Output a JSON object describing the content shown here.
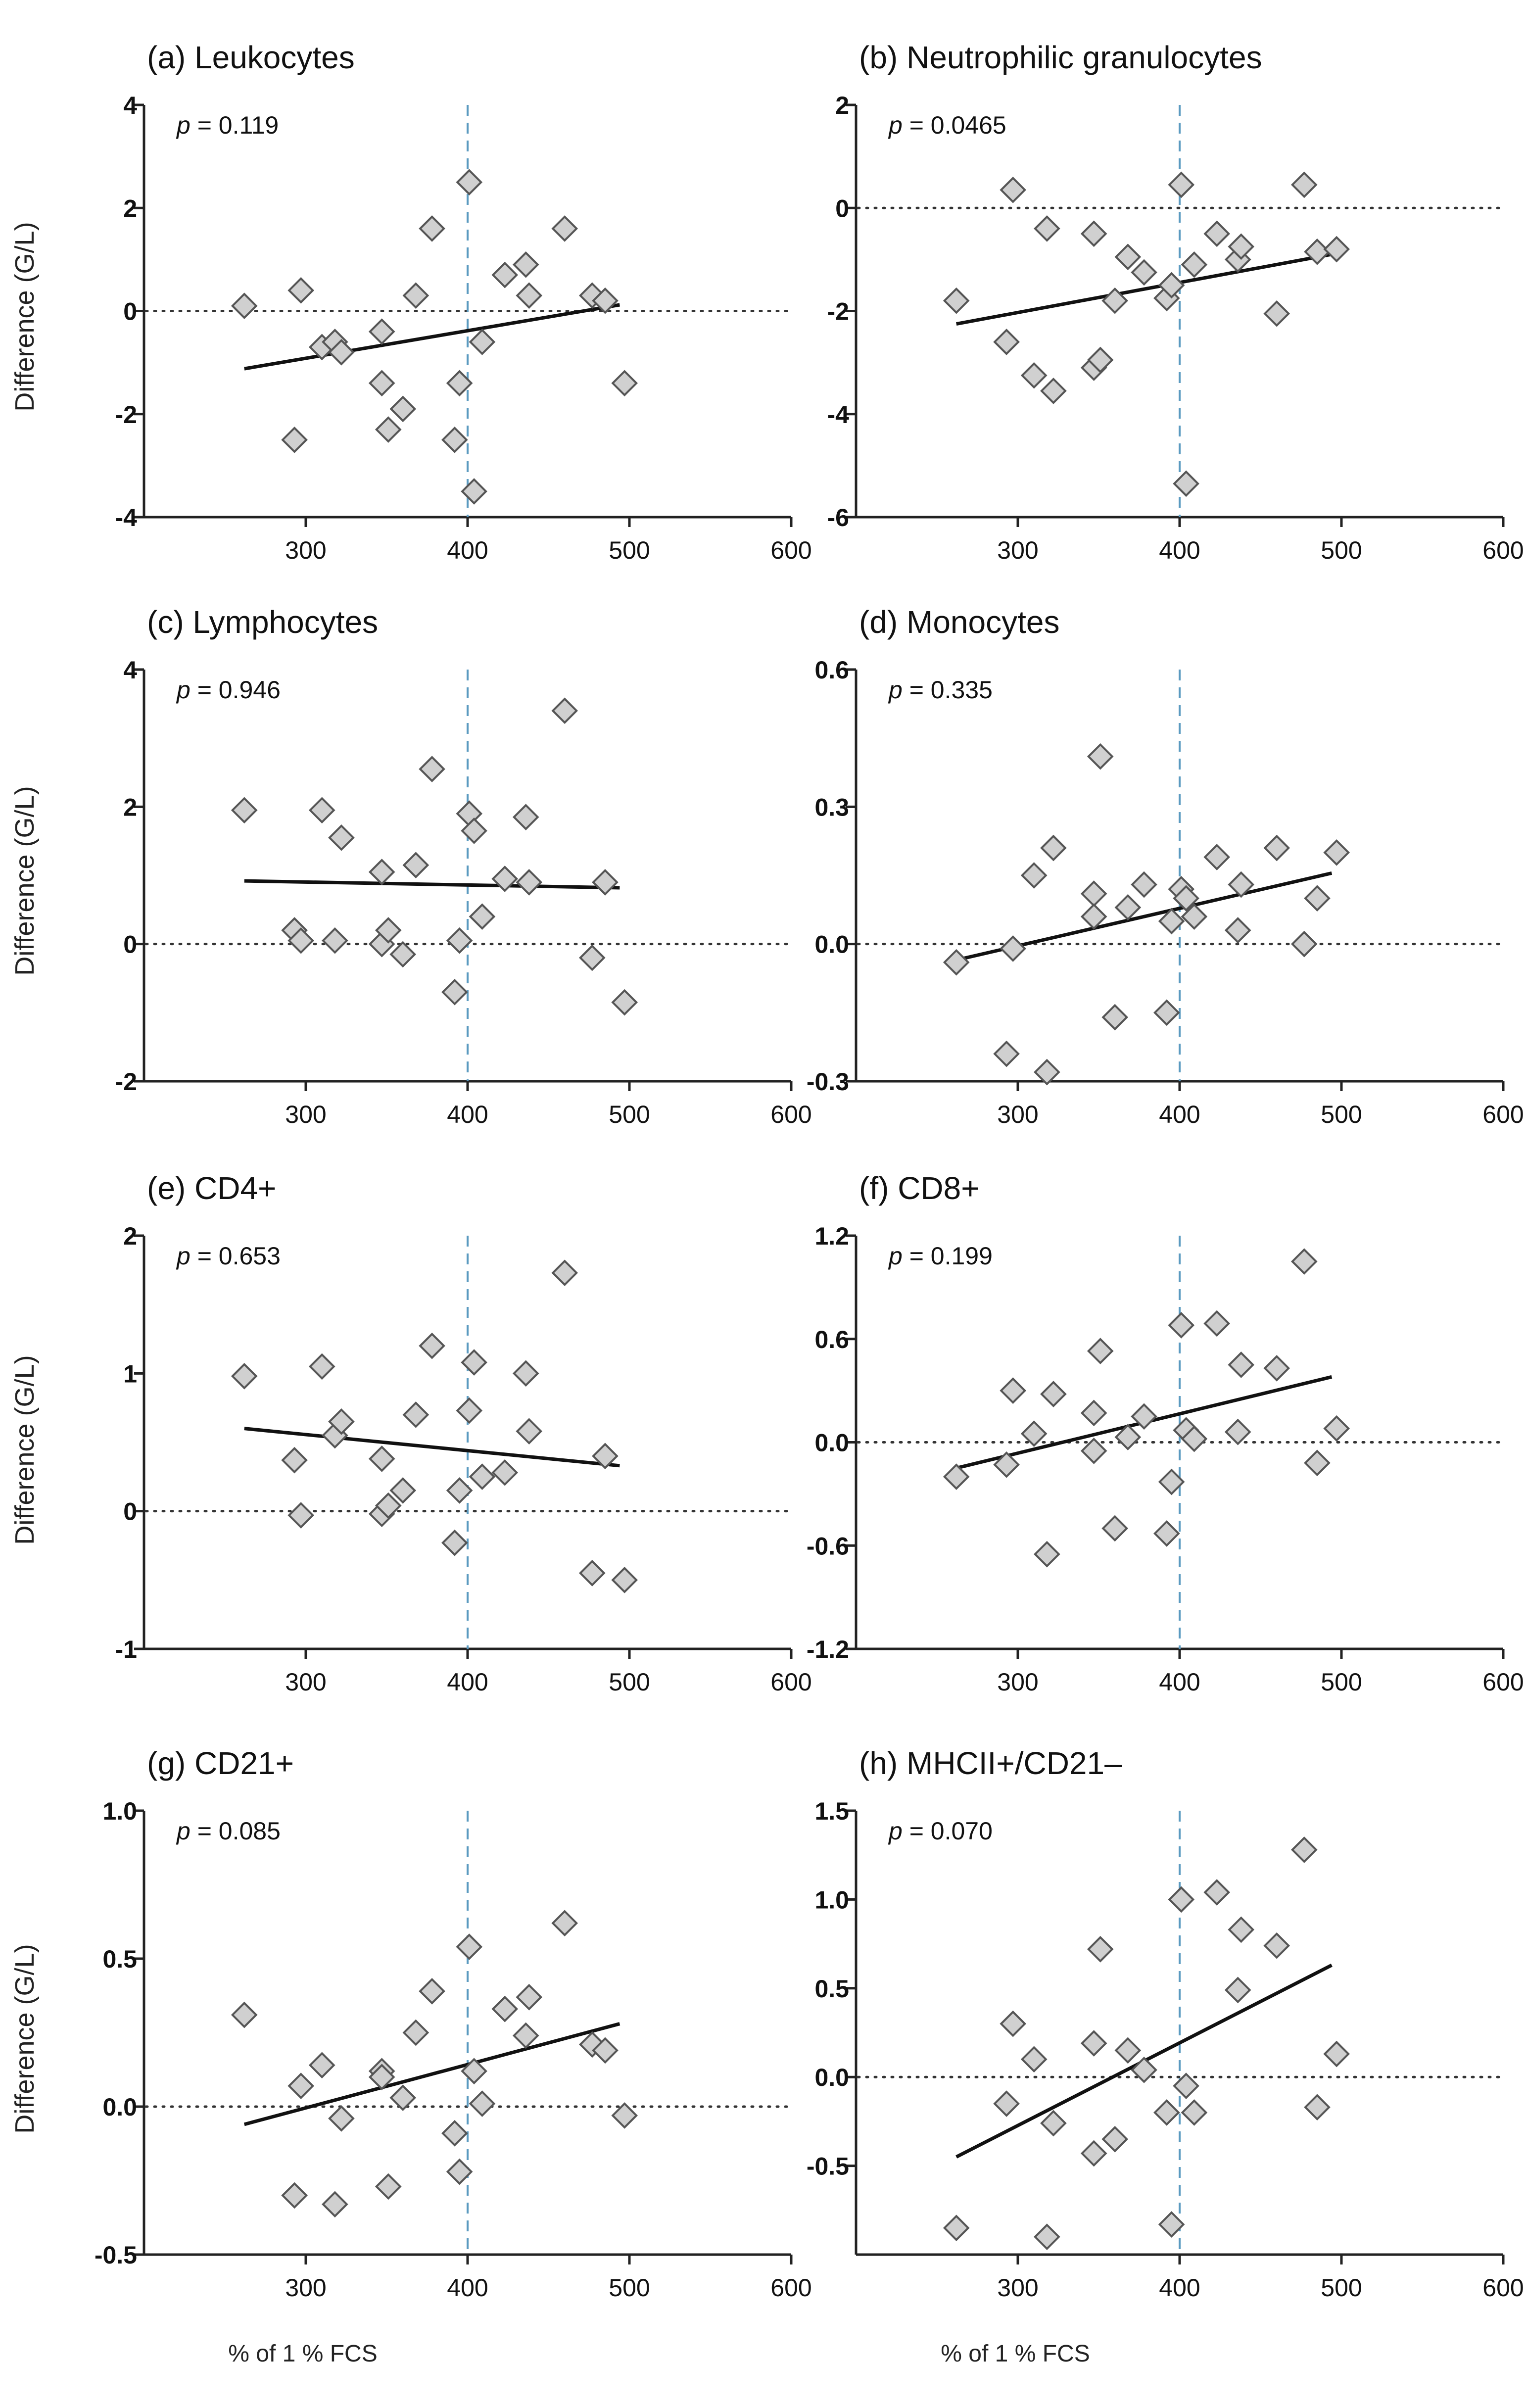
{
  "figure": {
    "x_axis_label": "% of 1 % FCS",
    "y_axis_label": "Difference (G/L)",
    "colors": {
      "marker_fill": "#d0d0d0",
      "marker_stroke": "#555555",
      "vline": "#5a9ac0",
      "regression": "#111111"
    }
  },
  "chart_data": [
    {
      "type": "scatter",
      "panel": "(a)",
      "title": "(a) Leukocytes",
      "p_label": "p",
      "p_value": " = 0.119",
      "xlim": [
        200,
        600
      ],
      "ylim": [
        -4,
        4
      ],
      "xticks": [
        "300",
        "400",
        "500",
        "600"
      ],
      "xtick_values": [
        300,
        400,
        500,
        600
      ],
      "yticks": [
        "-4",
        "-2",
        "0",
        "2",
        "4"
      ],
      "ytick_values": [
        -4,
        -2,
        0,
        2,
        4
      ],
      "reference_x": 400,
      "zero_line": 0,
      "regression": [
        [
          262,
          -1.12
        ],
        [
          494,
          0.12
        ]
      ],
      "points": [
        [
          262,
          0.1
        ],
        [
          293,
          -2.5
        ],
        [
          297,
          0.4
        ],
        [
          310,
          -0.7
        ],
        [
          318,
          -0.6
        ],
        [
          322,
          -0.8
        ],
        [
          347,
          -0.4
        ],
        [
          347,
          -1.4
        ],
        [
          351,
          -2.3
        ],
        [
          360,
          -1.9
        ],
        [
          368,
          0.3
        ],
        [
          378,
          1.6
        ],
        [
          392,
          -2.5
        ],
        [
          395,
          -1.4
        ],
        [
          401,
          2.5
        ],
        [
          404,
          -3.5
        ],
        [
          409,
          -0.6
        ],
        [
          423,
          0.7
        ],
        [
          436,
          0.9
        ],
        [
          438,
          0.3
        ],
        [
          460,
          1.6
        ],
        [
          477,
          0.3
        ],
        [
          485,
          0.2
        ],
        [
          497,
          -1.4
        ]
      ]
    },
    {
      "type": "scatter",
      "panel": "(b)",
      "title": "(b) Neutrophilic granulocytes",
      "p_label": "p",
      "p_value": " = 0.0465",
      "xlim": [
        200,
        600
      ],
      "ylim": [
        -6,
        2
      ],
      "xticks": [
        "300",
        "400",
        "500",
        "600"
      ],
      "xtick_values": [
        300,
        400,
        500,
        600
      ],
      "yticks": [
        "-6",
        "-4",
        "-2",
        "0",
        "2"
      ],
      "ytick_values": [
        -6,
        -4,
        -2,
        0,
        2
      ],
      "reference_x": 400,
      "zero_line": 0,
      "regression": [
        [
          262,
          -2.25
        ],
        [
          494,
          -0.9
        ]
      ],
      "points": [
        [
          262,
          -1.8
        ],
        [
          293,
          -2.6
        ],
        [
          297,
          0.35
        ],
        [
          310,
          -3.25
        ],
        [
          318,
          -0.4
        ],
        [
          322,
          -3.55
        ],
        [
          347,
          -0.5
        ],
        [
          347,
          -3.1
        ],
        [
          351,
          -2.95
        ],
        [
          360,
          -1.8
        ],
        [
          368,
          -0.95
        ],
        [
          378,
          -1.25
        ],
        [
          392,
          -1.75
        ],
        [
          395,
          -1.5
        ],
        [
          401,
          0.45
        ],
        [
          404,
          -5.35
        ],
        [
          409,
          -1.1
        ],
        [
          423,
          -0.5
        ],
        [
          436,
          -1.0
        ],
        [
          438,
          -0.75
        ],
        [
          460,
          -2.05
        ],
        [
          477,
          0.45
        ],
        [
          485,
          -0.85
        ],
        [
          497,
          -0.8
        ]
      ]
    },
    {
      "type": "scatter",
      "panel": "(c)",
      "title": "(c) Lymphocytes",
      "p_label": "p",
      "p_value": " = 0.946",
      "xlim": [
        200,
        600
      ],
      "ylim": [
        -2,
        4
      ],
      "xticks": [
        "300",
        "400",
        "500",
        "600"
      ],
      "xtick_values": [
        300,
        400,
        500,
        600
      ],
      "yticks": [
        "-2",
        "0",
        "2",
        "4"
      ],
      "ytick_values": [
        -2,
        0,
        2,
        4
      ],
      "reference_x": 400,
      "zero_line": 0,
      "regression": [
        [
          262,
          0.92
        ],
        [
          494,
          0.82
        ]
      ],
      "points": [
        [
          262,
          1.95
        ],
        [
          293,
          0.2
        ],
        [
          297,
          0.05
        ],
        [
          310,
          1.95
        ],
        [
          318,
          0.05
        ],
        [
          322,
          1.55
        ],
        [
          347,
          1.05
        ],
        [
          347,
          0.0
        ],
        [
          351,
          0.2
        ],
        [
          360,
          -0.15
        ],
        [
          368,
          1.15
        ],
        [
          378,
          2.55
        ],
        [
          392,
          -0.7
        ],
        [
          395,
          0.05
        ],
        [
          401,
          1.9
        ],
        [
          404,
          1.65
        ],
        [
          409,
          0.4
        ],
        [
          423,
          0.95
        ],
        [
          436,
          1.85
        ],
        [
          438,
          0.9
        ],
        [
          460,
          3.4
        ],
        [
          477,
          -0.2
        ],
        [
          485,
          0.9
        ],
        [
          497,
          -0.85
        ]
      ]
    },
    {
      "type": "scatter",
      "panel": "(d)",
      "title": "(d) Monocytes",
      "p_label": "p",
      "p_value": " = 0.335",
      "xlim": [
        200,
        600
      ],
      "ylim": [
        -0.3,
        0.6
      ],
      "xticks": [
        "300",
        "400",
        "500",
        "600"
      ],
      "xtick_values": [
        300,
        400,
        500,
        600
      ],
      "yticks": [
        "-0.3",
        "0.0",
        "0.3",
        "0.6"
      ],
      "ytick_values": [
        -0.3,
        0.0,
        0.3,
        0.6
      ],
      "reference_x": 400,
      "zero_line": 0,
      "regression": [
        [
          262,
          -0.035
        ],
        [
          494,
          0.155
        ]
      ],
      "points": [
        [
          262,
          -0.04
        ],
        [
          293,
          -0.24
        ],
        [
          297,
          -0.01
        ],
        [
          310,
          0.15
        ],
        [
          318,
          -0.28
        ],
        [
          322,
          0.21
        ],
        [
          347,
          0.11
        ],
        [
          347,
          0.06
        ],
        [
          351,
          0.41
        ],
        [
          360,
          -0.16
        ],
        [
          368,
          0.08
        ],
        [
          378,
          0.13
        ],
        [
          392,
          -0.15
        ],
        [
          395,
          0.05
        ],
        [
          401,
          0.12
        ],
        [
          404,
          0.1
        ],
        [
          409,
          0.06
        ],
        [
          423,
          0.19
        ],
        [
          436,
          0.03
        ],
        [
          438,
          0.13
        ],
        [
          460,
          0.21
        ],
        [
          477,
          0.0
        ],
        [
          485,
          0.1
        ],
        [
          497,
          0.2
        ]
      ]
    },
    {
      "type": "scatter",
      "panel": "(e)",
      "title": "(e) CD4+",
      "p_label": "p",
      "p_value": " = 0.653",
      "xlim": [
        200,
        600
      ],
      "ylim": [
        -1,
        2
      ],
      "xticks": [
        "300",
        "400",
        "500",
        "600"
      ],
      "xtick_values": [
        300,
        400,
        500,
        600
      ],
      "yticks": [
        "-1",
        "0",
        "1",
        "2"
      ],
      "ytick_values": [
        -1,
        0,
        1,
        2
      ],
      "reference_x": 400,
      "zero_line": 0,
      "regression": [
        [
          262,
          0.6
        ],
        [
          494,
          0.33
        ]
      ],
      "points": [
        [
          262,
          0.98
        ],
        [
          293,
          0.37
        ],
        [
          297,
          -0.03
        ],
        [
          310,
          1.05
        ],
        [
          318,
          0.55
        ],
        [
          322,
          0.65
        ],
        [
          347,
          0.38
        ],
        [
          347,
          -0.02
        ],
        [
          351,
          0.04
        ],
        [
          360,
          0.15
        ],
        [
          368,
          0.7
        ],
        [
          378,
          1.2
        ],
        [
          392,
          -0.23
        ],
        [
          395,
          0.15
        ],
        [
          401,
          0.73
        ],
        [
          404,
          1.08
        ],
        [
          409,
          0.25
        ],
        [
          423,
          0.28
        ],
        [
          436,
          1.0
        ],
        [
          438,
          0.58
        ],
        [
          460,
          1.73
        ],
        [
          477,
          -0.45
        ],
        [
          485,
          0.4
        ],
        [
          497,
          -0.5
        ]
      ]
    },
    {
      "type": "scatter",
      "panel": "(f)",
      "title": "(f) CD8+",
      "p_label": "p",
      "p_value": " = 0.199",
      "xlim": [
        200,
        600
      ],
      "ylim": [
        -1.2,
        1.2
      ],
      "xticks": [
        "300",
        "400",
        "500",
        "600"
      ],
      "xtick_values": [
        300,
        400,
        500,
        600
      ],
      "yticks": [
        "-1.2",
        "-0.6",
        "0.0",
        "0.6",
        "1.2"
      ],
      "ytick_values": [
        -1.2,
        -0.6,
        0.0,
        0.6,
        1.2
      ],
      "reference_x": 400,
      "zero_line": 0,
      "regression": [
        [
          262,
          -0.15
        ],
        [
          494,
          0.38
        ]
      ],
      "points": [
        [
          262,
          -0.2
        ],
        [
          293,
          -0.13
        ],
        [
          297,
          0.3
        ],
        [
          310,
          0.05
        ],
        [
          318,
          -0.65
        ],
        [
          322,
          0.28
        ],
        [
          347,
          0.17
        ],
        [
          347,
          -0.05
        ],
        [
          351,
          0.53
        ],
        [
          360,
          -0.5
        ],
        [
          368,
          0.03
        ],
        [
          378,
          0.15
        ],
        [
          392,
          -0.53
        ],
        [
          395,
          -0.23
        ],
        [
          401,
          0.68
        ],
        [
          404,
          0.07
        ],
        [
          409,
          0.02
        ],
        [
          423,
          0.69
        ],
        [
          436,
          0.06
        ],
        [
          438,
          0.45
        ],
        [
          460,
          0.43
        ],
        [
          477,
          1.05
        ],
        [
          485,
          -0.12
        ],
        [
          497,
          0.08
        ]
      ]
    },
    {
      "type": "scatter",
      "panel": "(g)",
      "title": "(g) CD21+",
      "p_label": "p",
      "p_value": " = 0.085",
      "xlim": [
        200,
        600
      ],
      "ylim": [
        -0.5,
        1.0
      ],
      "xticks": [
        "300",
        "400",
        "500",
        "600"
      ],
      "xtick_values": [
        300,
        400,
        500,
        600
      ],
      "yticks": [
        "-0.5",
        "0.0",
        "0.5",
        "1.0"
      ],
      "ytick_values": [
        -0.5,
        0.0,
        0.5,
        1.0
      ],
      "reference_x": 400,
      "zero_line": 0,
      "regression": [
        [
          262,
          -0.06
        ],
        [
          494,
          0.28
        ]
      ],
      "points": [
        [
          262,
          0.31
        ],
        [
          293,
          -0.3
        ],
        [
          297,
          0.07
        ],
        [
          310,
          0.14
        ],
        [
          318,
          -0.33
        ],
        [
          322,
          -0.04
        ],
        [
          347,
          0.12
        ],
        [
          347,
          0.1
        ],
        [
          351,
          -0.27
        ],
        [
          360,
          0.03
        ],
        [
          368,
          0.25
        ],
        [
          378,
          0.39
        ],
        [
          392,
          -0.09
        ],
        [
          395,
          -0.22
        ],
        [
          401,
          0.54
        ],
        [
          404,
          0.12
        ],
        [
          409,
          0.01
        ],
        [
          423,
          0.33
        ],
        [
          436,
          0.24
        ],
        [
          438,
          0.37
        ],
        [
          460,
          0.62
        ],
        [
          477,
          0.21
        ],
        [
          485,
          0.19
        ],
        [
          497,
          -0.03
        ]
      ]
    },
    {
      "type": "scatter",
      "panel": "(h)",
      "title": "(h) MHCII+/CD21–",
      "p_label": "p",
      "p_value": " = 0.070",
      "xlim": [
        200,
        600
      ],
      "ylim": [
        -1.0,
        1.5
      ],
      "xticks": [
        "300",
        "400",
        "500",
        "600"
      ],
      "xtick_values": [
        300,
        400,
        500,
        600
      ],
      "yticks": [
        "-0.5",
        "0.0",
        "0.5",
        "1.0",
        "1.5"
      ],
      "ytick_values": [
        -0.5,
        0.0,
        0.5,
        1.0,
        1.5
      ],
      "reference_x": 400,
      "zero_line": 0,
      "regression": [
        [
          262,
          -0.45
        ],
        [
          494,
          0.63
        ]
      ],
      "points": [
        [
          262,
          -0.85
        ],
        [
          293,
          -0.15
        ],
        [
          297,
          0.3
        ],
        [
          310,
          0.1
        ],
        [
          318,
          -0.9
        ],
        [
          322,
          -0.26
        ],
        [
          347,
          0.19
        ],
        [
          347,
          -0.43
        ],
        [
          351,
          0.72
        ],
        [
          360,
          -0.35
        ],
        [
          368,
          0.15
        ],
        [
          378,
          0.04
        ],
        [
          392,
          -0.2
        ],
        [
          395,
          -0.83
        ],
        [
          401,
          1.0
        ],
        [
          404,
          -0.05
        ],
        [
          409,
          -0.2
        ],
        [
          423,
          1.04
        ],
        [
          436,
          0.49
        ],
        [
          438,
          0.83
        ],
        [
          460,
          0.74
        ],
        [
          477,
          1.28
        ],
        [
          485,
          -0.17
        ],
        [
          497,
          0.13
        ]
      ]
    }
  ]
}
